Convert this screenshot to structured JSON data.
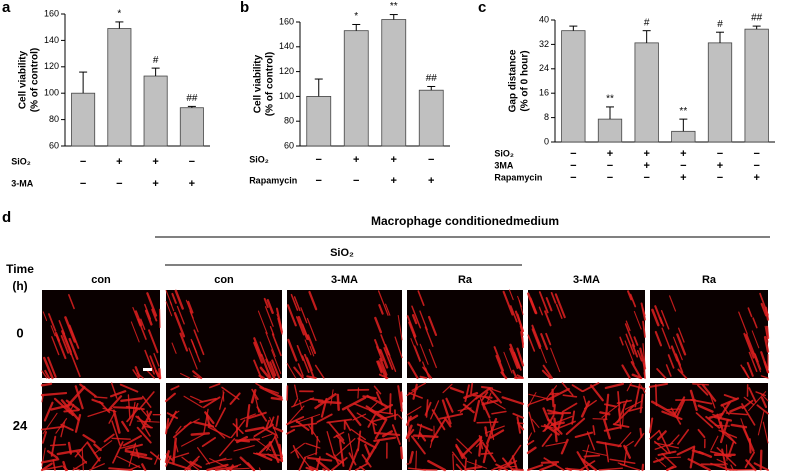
{
  "chart_data": [
    {
      "type": "bar",
      "panel": "a",
      "ylabel": [
        "Cell viability",
        "(% of control)"
      ],
      "ylim": [
        60,
        160
      ],
      "yticks": [
        60,
        80,
        100,
        120,
        140,
        160
      ],
      "color": "#c0c0c0",
      "values": [
        100,
        149,
        113,
        89
      ],
      "errors": [
        16,
        5,
        6,
        1
      ],
      "annotations": [
        null,
        "*",
        "#",
        "##"
      ],
      "conditions": [
        {
          "name": "SiO₂",
          "signs": [
            "−",
            "+",
            "+",
            "−"
          ]
        },
        {
          "name": "3-MA",
          "signs": [
            "−",
            "−",
            "+",
            "+"
          ]
        }
      ]
    },
    {
      "type": "bar",
      "panel": "b",
      "ylabel": [
        "Cell viability",
        "(% of control)"
      ],
      "ylim": [
        60,
        160
      ],
      "yticks": [
        60,
        80,
        100,
        120,
        140,
        160
      ],
      "color": "#c0c0c0",
      "values": [
        100,
        153,
        162,
        105
      ],
      "errors": [
        14,
        5,
        4,
        3
      ],
      "annotations": [
        null,
        "*",
        "**",
        "##"
      ],
      "conditions": [
        {
          "name": "SiO₂",
          "signs": [
            "−",
            "+",
            "+",
            "−"
          ]
        },
        {
          "name": "Rapamycin",
          "signs": [
            "−",
            "−",
            "+",
            "+"
          ]
        }
      ]
    },
    {
      "type": "bar",
      "panel": "c",
      "ylabel": [
        "Gap distance",
        "(% of 0 hour)"
      ],
      "ylim": [
        0,
        40
      ],
      "yticks": [
        0,
        8,
        16,
        24,
        32,
        40
      ],
      "color": "#c0c0c0",
      "values": [
        36.5,
        7.5,
        32.5,
        3.5,
        32.5,
        37
      ],
      "errors": [
        1.5,
        4,
        4,
        4,
        3.5,
        1
      ],
      "annotations": [
        null,
        "**",
        "#",
        "**",
        "#",
        "##"
      ],
      "conditions": [
        {
          "name": "SiO₂",
          "signs": [
            "−",
            "+",
            "+",
            "+",
            "−",
            "−"
          ]
        },
        {
          "name": "3MA",
          "signs": [
            "−",
            "−",
            "+",
            "−",
            "+",
            "−"
          ]
        },
        {
          "name": "Rapamycin",
          "signs": [
            "−",
            "−",
            "−",
            "+",
            "−",
            "+"
          ]
        }
      ]
    }
  ],
  "panel_d": {
    "panel": "d",
    "title": "Macrophage conditionedmedium",
    "group": "SiO₂",
    "time_label": [
      "Time",
      "(h)"
    ],
    "columns": [
      "con",
      "con",
      "3-MA",
      "Ra",
      "3-MA",
      "Ra"
    ],
    "rows": [
      "0",
      "24"
    ]
  }
}
